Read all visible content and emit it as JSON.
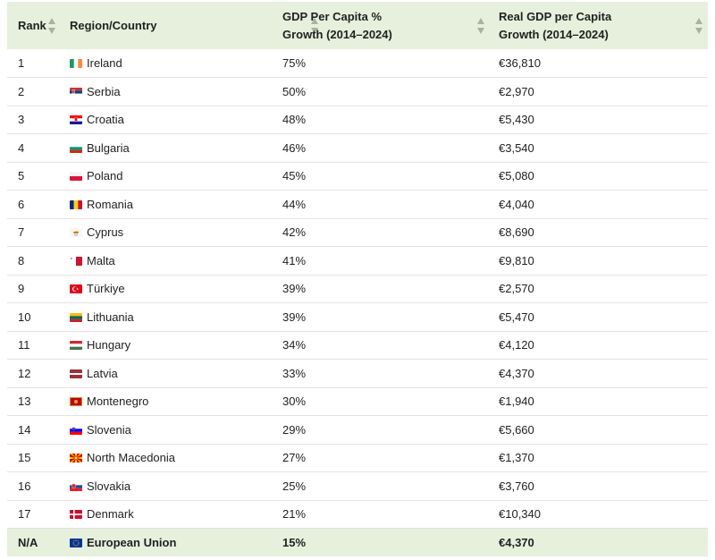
{
  "headers": {
    "rank": "Rank",
    "region": "Region/Country",
    "growth_line1": "GDP Per Capita %",
    "growth_line2": "Growth (2014–2024)",
    "gdp_line1": "Real GDP per Capita",
    "gdp_line2": "Growth (2014–2024)"
  },
  "rows": [
    {
      "rank": "1",
      "country": "Ireland",
      "flag": "ireland-flag-icon",
      "growth": "75%",
      "gdp": "€36,810"
    },
    {
      "rank": "2",
      "country": "Serbia",
      "flag": "serbia-flag-icon",
      "growth": "50%",
      "gdp": "€2,970"
    },
    {
      "rank": "3",
      "country": "Croatia",
      "flag": "croatia-flag-icon",
      "growth": "48%",
      "gdp": "€5,430"
    },
    {
      "rank": "4",
      "country": "Bulgaria",
      "flag": "bulgaria-flag-icon",
      "growth": "46%",
      "gdp": "€3,540"
    },
    {
      "rank": "5",
      "country": "Poland",
      "flag": "poland-flag-icon",
      "growth": "45%",
      "gdp": "€5,080"
    },
    {
      "rank": "6",
      "country": "Romania",
      "flag": "romania-flag-icon",
      "growth": "44%",
      "gdp": "€4,040"
    },
    {
      "rank": "7",
      "country": "Cyprus",
      "flag": "cyprus-flag-icon",
      "growth": "42%",
      "gdp": "€8,690"
    },
    {
      "rank": "8",
      "country": "Malta",
      "flag": "malta-flag-icon",
      "growth": "41%",
      "gdp": "€9,810"
    },
    {
      "rank": "9",
      "country": "Türkiye",
      "flag": "turkiye-flag-icon",
      "growth": "39%",
      "gdp": "€2,570"
    },
    {
      "rank": "10",
      "country": "Lithuania",
      "flag": "lithuania-flag-icon",
      "growth": "39%",
      "gdp": "€5,470"
    },
    {
      "rank": "11",
      "country": "Hungary",
      "flag": "hungary-flag-icon",
      "growth": "34%",
      "gdp": "€4,120"
    },
    {
      "rank": "12",
      "country": "Latvia",
      "flag": "latvia-flag-icon",
      "growth": "33%",
      "gdp": "€4,370"
    },
    {
      "rank": "13",
      "country": "Montenegro",
      "flag": "montenegro-flag-icon",
      "growth": "30%",
      "gdp": "€1,940"
    },
    {
      "rank": "14",
      "country": "Slovenia",
      "flag": "slovenia-flag-icon",
      "growth": "29%",
      "gdp": "€5,660"
    },
    {
      "rank": "15",
      "country": "North Macedonia",
      "flag": "north-macedonia-flag-icon",
      "growth": "27%",
      "gdp": "€1,370"
    },
    {
      "rank": "16",
      "country": "Slovakia",
      "flag": "slovakia-flag-icon",
      "growth": "25%",
      "gdp": "€3,760"
    },
    {
      "rank": "17",
      "country": "Denmark",
      "flag": "denmark-flag-icon",
      "growth": "21%",
      "gdp": "€10,340"
    }
  ],
  "total": {
    "rank": "N/A",
    "country": "European Union",
    "flag": "eu-flag-icon",
    "growth": "15%",
    "gdp": "€4,370"
  },
  "colors": {
    "header_bg": "#e6f0dc",
    "row_border": "#e2e2e2",
    "sort_icon": "#a8b2a0"
  }
}
